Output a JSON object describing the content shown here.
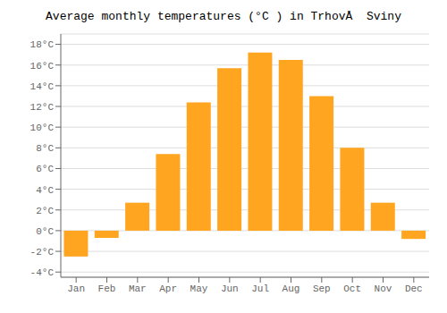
{
  "chart_data": {
    "type": "bar",
    "title": "Average monthly temperatures (°C ) in TrhovÅ  Sviny",
    "categories": [
      "Jan",
      "Feb",
      "Mar",
      "Apr",
      "May",
      "Jun",
      "Jul",
      "Aug",
      "Sep",
      "Oct",
      "Nov",
      "Dec"
    ],
    "values": [
      -2.5,
      -0.7,
      2.7,
      7.4,
      12.4,
      15.7,
      17.2,
      16.5,
      13.0,
      8.0,
      2.7,
      -0.8
    ],
    "color": "#FFA520",
    "ylim": [
      -4.5,
      19.0
    ],
    "yticks": [
      {
        "value": -4,
        "label": "-4°C"
      },
      {
        "value": -2,
        "label": "-2°C"
      },
      {
        "value": 0,
        "label": "0°C"
      },
      {
        "value": 2,
        "label": "2°C"
      },
      {
        "value": 4,
        "label": "4°C"
      },
      {
        "value": 6,
        "label": "6°C"
      },
      {
        "value": 8,
        "label": "8°C"
      },
      {
        "value": 10,
        "label": "10°C"
      },
      {
        "value": 12,
        "label": "12°C"
      },
      {
        "value": 14,
        "label": "14°C"
      },
      {
        "value": 16,
        "label": "16°C"
      },
      {
        "value": 18,
        "label": "18°C"
      }
    ],
    "grid": true
  }
}
